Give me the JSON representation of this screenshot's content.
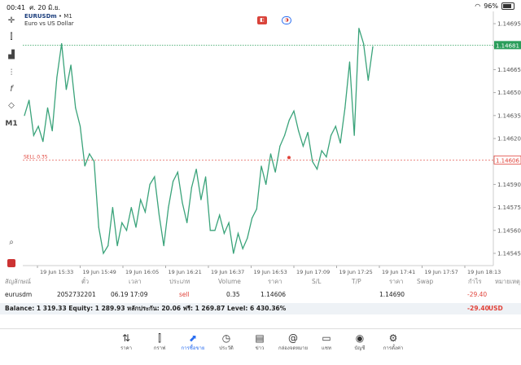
{
  "status": {
    "time": "00:41",
    "date": "ศ. 20 มิ.ย.",
    "battery": "96%"
  },
  "chart": {
    "symbol": "EURUSDm",
    "timeframe": "M1",
    "description": "Euro vs US Dollar",
    "sell_label": "SELL 0.35",
    "current_price": "1.14681",
    "order_price": "1.14606",
    "price_ticks": [
      "1.14695",
      "1.14680",
      "1.14665",
      "1.14650",
      "1.14635",
      "1.14620",
      "1.14605",
      "1.14590",
      "1.14575",
      "1.14560",
      "1.14545"
    ],
    "time_ticks": [
      "19 Jun 15:33",
      "19 Jun 15:49",
      "19 Jun 16:05",
      "19 Jun 16:21",
      "19 Jun 16:37",
      "19 Jun 16:53",
      "19 Jun 17:09",
      "19 Jun 17:25",
      "19 Jun 17:41",
      "19 Jun 17:57",
      "19 Jun 18:13"
    ]
  },
  "toolbar": {
    "timeframe_label": "M1",
    "function_label": "f"
  },
  "chart_data": {
    "type": "line",
    "ylim": [
      1.14537,
      1.14703
    ],
    "values": [
      1.14635,
      1.14645,
      1.14622,
      1.14628,
      1.14618,
      1.1464,
      1.14625,
      1.1466,
      1.14682,
      1.14652,
      1.14668,
      1.1464,
      1.14628,
      1.14602,
      1.1461,
      1.14605,
      1.14562,
      1.14545,
      1.1455,
      1.14575,
      1.1455,
      1.14565,
      1.1456,
      1.14575,
      1.14562,
      1.1458,
      1.14572,
      1.1459,
      1.14595,
      1.1457,
      1.1455,
      1.14575,
      1.14592,
      1.14598,
      1.14578,
      1.14565,
      1.14588,
      1.146,
      1.1458,
      1.14595,
      1.1456,
      1.1456,
      1.1457,
      1.14558,
      1.14565,
      1.14545,
      1.14558,
      1.14548,
      1.14555,
      1.14568,
      1.14574,
      1.14602,
      1.1459,
      1.1461,
      1.14598,
      1.14615,
      1.14622,
      1.14632,
      1.14638,
      1.14625,
      1.14615,
      1.14624,
      1.14605,
      1.146,
      1.14612,
      1.14608,
      1.14622,
      1.14628,
      1.14617,
      1.1464,
      1.1467,
      1.14622,
      1.14692,
      1.14682,
      1.14658,
      1.1468
    ]
  },
  "positions": {
    "headers": {
      "symbol": "สัญลักษณ์",
      "ticket": "ตั๋ว",
      "time": "เวลา",
      "type": "ประเภท",
      "volume": "Volume",
      "price": "ราคา",
      "sl": "S/L",
      "tp": "T/P",
      "current": "ราคา",
      "swap": "Swap",
      "profit": "กำไร",
      "comment": "หมายเหตุ"
    },
    "rows": [
      {
        "symbol": "eurusdm",
        "ticket": "2052732201",
        "time": "06.19 17:09",
        "type": "sell",
        "volume": "0.35",
        "price": "1.14606",
        "current": "1.14690",
        "profit": "-29.40"
      }
    ],
    "balance_line": "Balance: 1 319.33 Equity: 1 289.93 หลักประกัน: 20.06 ฟรี: 1 269.87 Level: 6 430.36%",
    "total_profit": "-29.40",
    "currency": "USD"
  },
  "nav": [
    {
      "label": "ราคา",
      "icon": "arrows-updown-icon"
    },
    {
      "label": "กราฟ",
      "icon": "candles-icon"
    },
    {
      "label": "การซื้อขาย",
      "icon": "trade-chart-icon"
    },
    {
      "label": "ประวัติ",
      "icon": "history-icon"
    },
    {
      "label": "ข่าว",
      "icon": "news-icon"
    },
    {
      "label": "กล่องจดหมาย",
      "icon": "mail-at-icon"
    },
    {
      "label": "แชท",
      "icon": "chat-icon"
    },
    {
      "label": "บัญชี",
      "icon": "account-icon"
    },
    {
      "label": "การตั้งค่า",
      "icon": "settings-gear-icon"
    }
  ],
  "colors": {
    "line": "#3aa37a",
    "sell": "#e0433a",
    "price_label": "#2a9d5a",
    "active": "#2a6ef0"
  }
}
